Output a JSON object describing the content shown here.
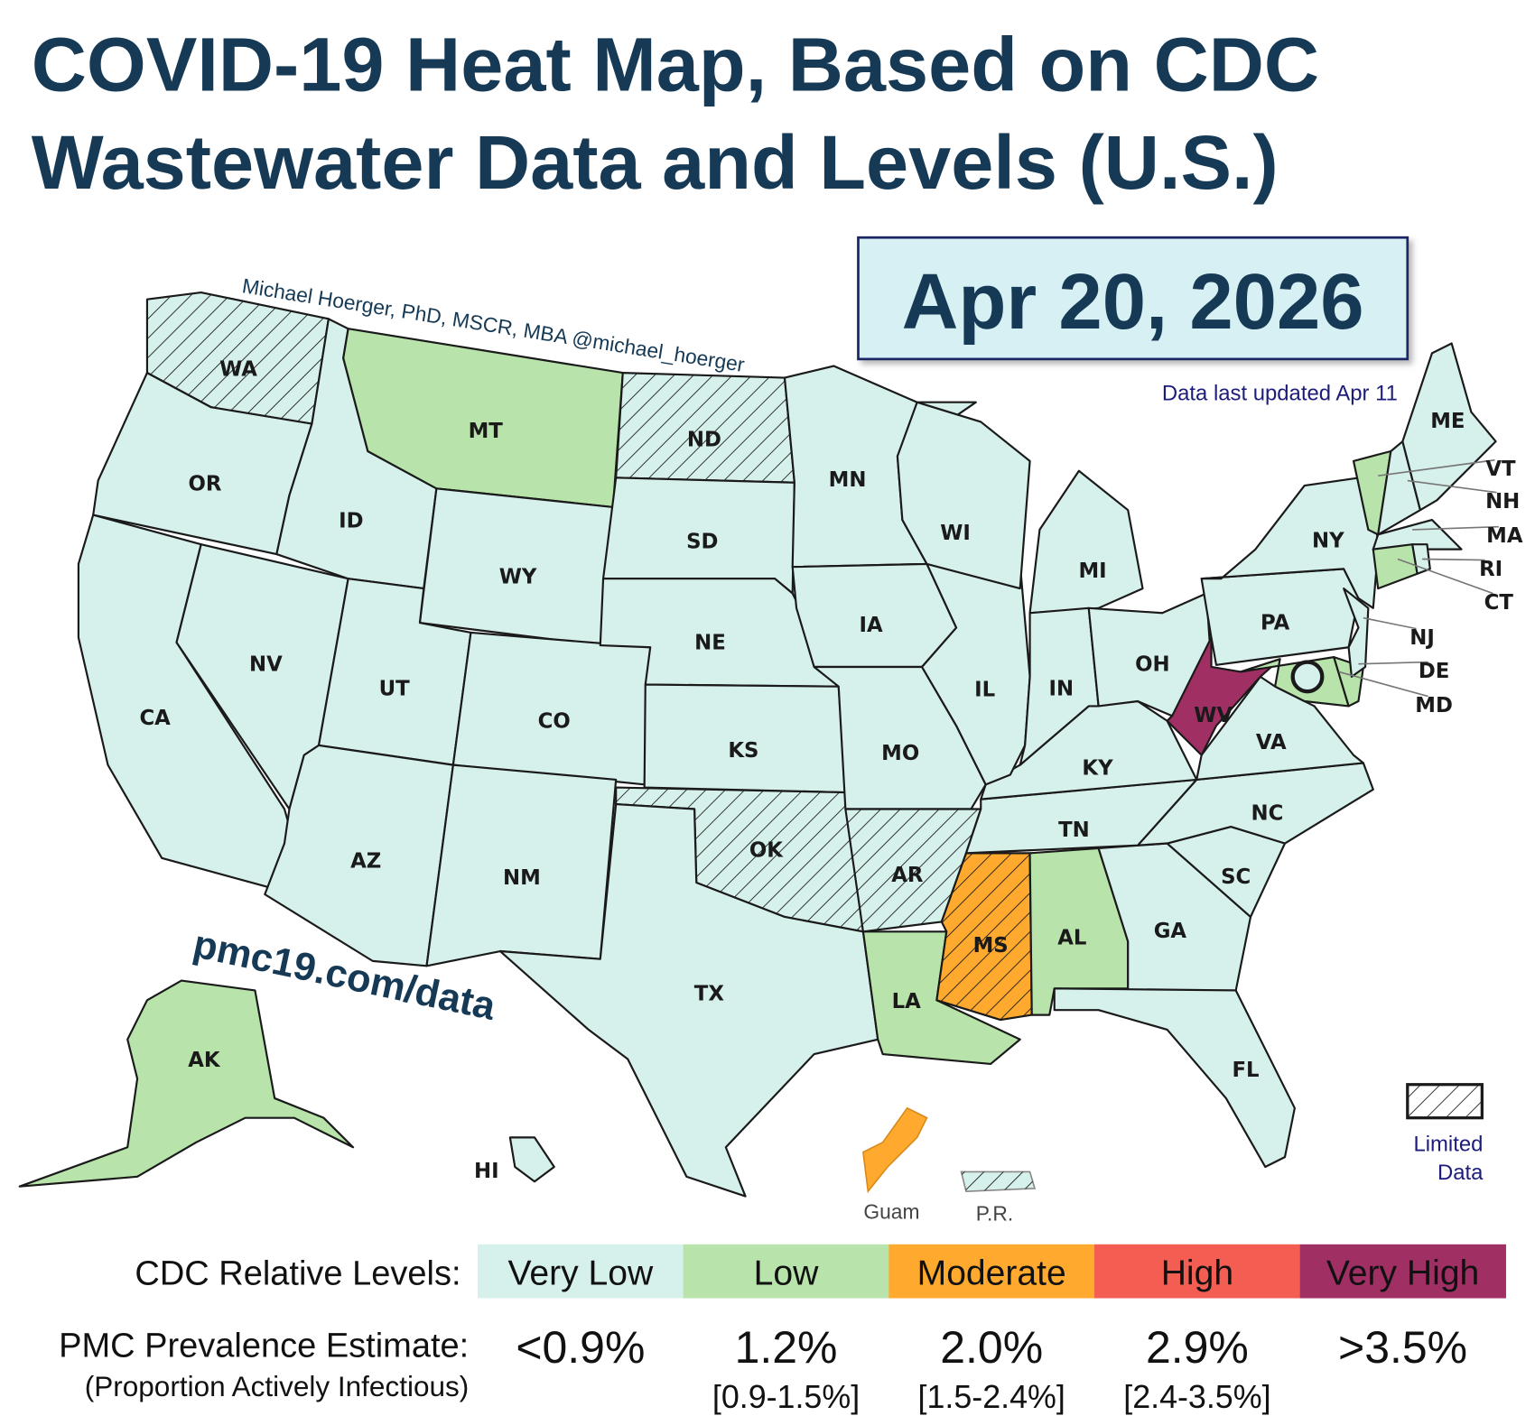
{
  "title_line1": "COVID-19 Heat Map, Based on CDC",
  "title_line2": "Wastewater Data and Levels (U.S.)",
  "date": "Apr 20, 2026",
  "updated": "Data last updated Apr 11",
  "author": "Michael Hoerger, PhD, MSCR, MBA  @michael_hoerger",
  "website": "pmc19.com/data",
  "colors": {
    "very_low": "#d6f0ec",
    "low": "#b8e4ab",
    "moderate": "#ffa92e",
    "high": "#f45d52",
    "very_high": "#a02f64",
    "title": "#163a55"
  },
  "states": [
    {
      "abbr": "WA",
      "level": "very_low",
      "limited": true
    },
    {
      "abbr": "OR",
      "level": "very_low",
      "limited": false
    },
    {
      "abbr": "CA",
      "level": "very_low",
      "limited": false
    },
    {
      "abbr": "NV",
      "level": "very_low",
      "limited": false
    },
    {
      "abbr": "ID",
      "level": "very_low",
      "limited": false
    },
    {
      "abbr": "MT",
      "level": "low",
      "limited": false
    },
    {
      "abbr": "WY",
      "level": "very_low",
      "limited": false
    },
    {
      "abbr": "UT",
      "level": "very_low",
      "limited": false
    },
    {
      "abbr": "CO",
      "level": "very_low",
      "limited": false
    },
    {
      "abbr": "AZ",
      "level": "very_low",
      "limited": false
    },
    {
      "abbr": "NM",
      "level": "very_low",
      "limited": false
    },
    {
      "abbr": "ND",
      "level": "very_low",
      "limited": true
    },
    {
      "abbr": "SD",
      "level": "very_low",
      "limited": false
    },
    {
      "abbr": "NE",
      "level": "very_low",
      "limited": false
    },
    {
      "abbr": "KS",
      "level": "very_low",
      "limited": false
    },
    {
      "abbr": "OK",
      "level": "very_low",
      "limited": true
    },
    {
      "abbr": "TX",
      "level": "very_low",
      "limited": false
    },
    {
      "abbr": "MN",
      "level": "very_low",
      "limited": false
    },
    {
      "abbr": "IA",
      "level": "very_low",
      "limited": false
    },
    {
      "abbr": "MO",
      "level": "very_low",
      "limited": false
    },
    {
      "abbr": "AR",
      "level": "very_low",
      "limited": true
    },
    {
      "abbr": "LA",
      "level": "low",
      "limited": false
    },
    {
      "abbr": "MS",
      "level": "moderate",
      "limited": true
    },
    {
      "abbr": "AL",
      "level": "low",
      "limited": false
    },
    {
      "abbr": "GA",
      "level": "very_low",
      "limited": false
    },
    {
      "abbr": "FL",
      "level": "very_low",
      "limited": false
    },
    {
      "abbr": "SC",
      "level": "very_low",
      "limited": false
    },
    {
      "abbr": "NC",
      "level": "very_low",
      "limited": false
    },
    {
      "abbr": "TN",
      "level": "very_low",
      "limited": false
    },
    {
      "abbr": "KY",
      "level": "very_low",
      "limited": false
    },
    {
      "abbr": "IL",
      "level": "very_low",
      "limited": false
    },
    {
      "abbr": "WI",
      "level": "very_low",
      "limited": false
    },
    {
      "abbr": "MI",
      "level": "very_low",
      "limited": false
    },
    {
      "abbr": "IN",
      "level": "very_low",
      "limited": false
    },
    {
      "abbr": "OH",
      "level": "very_low",
      "limited": false
    },
    {
      "abbr": "WV",
      "level": "very_high",
      "limited": false
    },
    {
      "abbr": "VA",
      "level": "very_low",
      "limited": false
    },
    {
      "abbr": "PA",
      "level": "very_low",
      "limited": false
    },
    {
      "abbr": "NY",
      "level": "very_low",
      "limited": false
    },
    {
      "abbr": "MD",
      "level": "low",
      "limited": false
    },
    {
      "abbr": "DE",
      "level": "low",
      "limited": false
    },
    {
      "abbr": "NJ",
      "level": "very_low",
      "limited": false
    },
    {
      "abbr": "VT",
      "level": "low",
      "limited": false
    },
    {
      "abbr": "NH",
      "level": "very_low",
      "limited": false
    },
    {
      "abbr": "ME",
      "level": "very_low",
      "limited": false
    },
    {
      "abbr": "MA",
      "level": "very_low",
      "limited": false
    },
    {
      "abbr": "CT",
      "level": "low",
      "limited": false
    },
    {
      "abbr": "RI",
      "level": "very_low",
      "limited": false
    },
    {
      "abbr": "AK",
      "level": "low",
      "limited": false
    },
    {
      "abbr": "HI",
      "level": "very_low",
      "limited": false
    }
  ],
  "territories": [
    {
      "name": "Guam",
      "level": "moderate",
      "limited": false
    },
    {
      "name": "P.R.",
      "level": "very_low",
      "limited": true
    }
  ],
  "limited_legend": "Limited Data",
  "legend": {
    "levels_label": "CDC Relative Levels:",
    "prevalence_label": "PMC Prevalence Estimate:",
    "prevalence_sub": "(Proportion Actively Infectious)",
    "levels": [
      {
        "name": "Very Low",
        "color": "#d6f0ec",
        "text_color": "#111111",
        "estimate": "<0.9%",
        "range": ""
      },
      {
        "name": "Low",
        "color": "#b8e4ab",
        "text_color": "#111111",
        "estimate": "1.2%",
        "range": "[0.9-1.5%]"
      },
      {
        "name": "Moderate",
        "color": "#ffa92e",
        "text_color": "#111111",
        "estimate": "2.0%",
        "range": "[1.5-2.4%]"
      },
      {
        "name": "High",
        "color": "#f45d52",
        "text_color": "#ffffff",
        "estimate": "2.9%",
        "range": "[2.4-3.5%]"
      },
      {
        "name": "Very High",
        "color": "#a02f64",
        "text_color": "#ffffff",
        "estimate": ">3.5%",
        "range": ""
      }
    ]
  }
}
